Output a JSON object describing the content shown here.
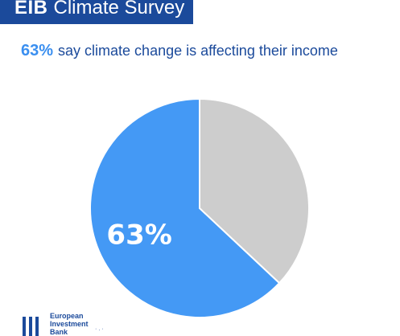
{
  "header": {
    "brand": "EIB",
    "title": "Climate Survey"
  },
  "subtitle": {
    "highlight": "63%",
    "text": "say climate change is affecting their income"
  },
  "chart_data": {
    "type": "pie",
    "title": "63% say climate change is affecting their income",
    "slices": [
      {
        "label": "63%",
        "value": 63,
        "color": "#4499f5"
      },
      {
        "label": "",
        "value": 37,
        "color": "#cdcdcd"
      }
    ],
    "legend": "none"
  },
  "footer": {
    "logo_lines": [
      "European",
      "Investment",
      "Bank"
    ]
  }
}
